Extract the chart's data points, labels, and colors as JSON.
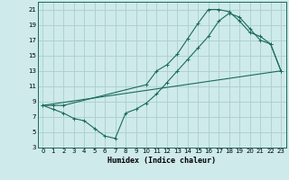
{
  "xlabel": "Humidex (Indice chaleur)",
  "bg_color": "#ceeaea",
  "line_color": "#1a6b5a",
  "grid_color": "#aacece",
  "xlim": [
    -0.5,
    23.5
  ],
  "ylim": [
    3,
    22
  ],
  "xticks": [
    0,
    1,
    2,
    3,
    4,
    5,
    6,
    7,
    8,
    9,
    10,
    11,
    12,
    13,
    14,
    15,
    16,
    17,
    18,
    19,
    20,
    21,
    22,
    23
  ],
  "yticks": [
    3,
    5,
    7,
    9,
    11,
    13,
    15,
    17,
    19,
    21
  ],
  "line1_x": [
    0,
    1,
    2,
    10,
    11,
    12,
    13,
    14,
    15,
    16,
    17,
    18,
    19,
    20,
    21,
    22,
    23
  ],
  "line1_y": [
    8.5,
    8.5,
    8.5,
    11.2,
    13.0,
    13.8,
    15.2,
    17.2,
    19.2,
    21.0,
    21.0,
    20.7,
    19.5,
    18.0,
    17.5,
    16.5,
    13.0
  ],
  "line2_x": [
    0,
    1,
    2,
    3,
    4,
    5,
    6,
    7,
    8,
    9,
    10,
    11,
    12,
    13,
    14,
    15,
    16,
    17,
    18,
    19,
    20,
    21,
    22,
    23
  ],
  "line2_y": [
    8.5,
    8.0,
    7.5,
    6.8,
    6.5,
    5.5,
    4.5,
    4.2,
    7.5,
    8.0,
    8.8,
    10.0,
    11.5,
    13.0,
    14.5,
    16.0,
    17.5,
    19.5,
    20.5,
    20.0,
    18.5,
    17.0,
    16.5,
    13.0
  ],
  "line3_x": [
    0,
    23
  ],
  "line3_y": [
    8.5,
    13.0
  ]
}
